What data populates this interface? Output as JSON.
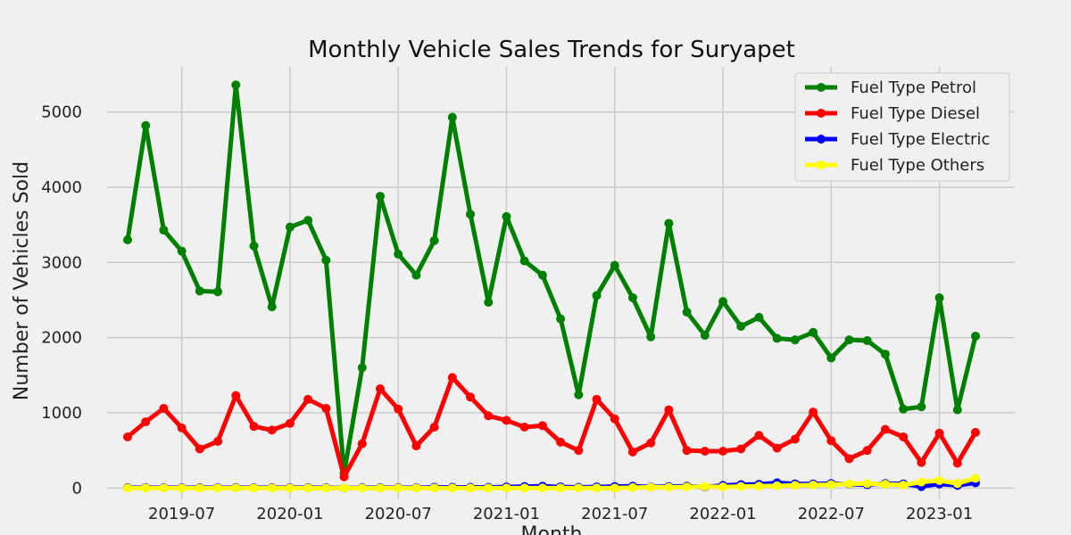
{
  "chart_data": {
    "type": "line",
    "title": "Monthly Vehicle Sales Trends for Suryapet",
    "xlabel": "Month",
    "ylabel": "Number of Vehicles Sold",
    "x": [
      "2019-04",
      "2019-05",
      "2019-06",
      "2019-07",
      "2019-08",
      "2019-09",
      "2019-10",
      "2019-11",
      "2019-12",
      "2020-01",
      "2020-02",
      "2020-03",
      "2020-04",
      "2020-05",
      "2020-06",
      "2020-07",
      "2020-08",
      "2020-09",
      "2020-10",
      "2020-11",
      "2020-12",
      "2021-01",
      "2021-02",
      "2021-03",
      "2021-04",
      "2021-05",
      "2021-06",
      "2021-07",
      "2021-08",
      "2021-09",
      "2021-10",
      "2021-11",
      "2021-12",
      "2022-01",
      "2022-02",
      "2022-03",
      "2022-04",
      "2022-05",
      "2022-06",
      "2022-07",
      "2022-08",
      "2022-09",
      "2022-10",
      "2022-11",
      "2022-12",
      "2023-01",
      "2023-02",
      "2023-03"
    ],
    "x_ticks": [
      "2019-07",
      "2020-01",
      "2020-07",
      "2021-01",
      "2021-07",
      "2022-01",
      "2022-07",
      "2023-01"
    ],
    "y_ticks": [
      0,
      1000,
      2000,
      3000,
      4000,
      5000
    ],
    "ylim": [
      -150,
      5600
    ],
    "grid": true,
    "legend": "top-right",
    "series": [
      {
        "name": "Fuel Type Petrol",
        "color": "#008000",
        "values": [
          3300,
          4820,
          3430,
          3150,
          2620,
          2610,
          5360,
          3220,
          2410,
          3470,
          3560,
          3030,
          200,
          1600,
          3880,
          3110,
          2830,
          3290,
          4930,
          3640,
          2470,
          3610,
          3020,
          2830,
          2250,
          1240,
          2560,
          2960,
          2530,
          2010,
          3520,
          2340,
          2030,
          2480,
          2150,
          2270,
          1990,
          1970,
          2070,
          1730,
          1970,
          1960,
          1780,
          1050,
          1080,
          2530,
          1040,
          2020
        ]
      },
      {
        "name": "Fuel Type Diesel",
        "color": "#ff0000",
        "values": [
          680,
          880,
          1060,
          800,
          520,
          620,
          1230,
          820,
          770,
          860,
          1180,
          1060,
          150,
          590,
          1320,
          1050,
          560,
          810,
          1470,
          1210,
          960,
          900,
          810,
          830,
          610,
          500,
          1180,
          920,
          480,
          600,
          1040,
          500,
          490,
          490,
          520,
          700,
          530,
          650,
          1010,
          630,
          390,
          500,
          780,
          680,
          340,
          730,
          330,
          740
        ]
      },
      {
        "name": "Fuel Type Electric",
        "color": "#0000ff",
        "values": [
          5,
          5,
          5,
          5,
          5,
          5,
          5,
          5,
          5,
          5,
          5,
          5,
          0,
          5,
          5,
          5,
          5,
          10,
          10,
          10,
          10,
          15,
          20,
          25,
          15,
          10,
          15,
          20,
          25,
          15,
          20,
          25,
          15,
          35,
          45,
          50,
          70,
          55,
          55,
          60,
          50,
          45,
          60,
          55,
          20,
          55,
          35,
          70
        ]
      },
      {
        "name": "Fuel Type Others",
        "color": "#ffff00",
        "values": [
          0,
          0,
          0,
          0,
          0,
          0,
          0,
          0,
          0,
          0,
          0,
          0,
          0,
          0,
          0,
          0,
          0,
          0,
          0,
          0,
          0,
          0,
          0,
          0,
          0,
          0,
          0,
          0,
          5,
          10,
          10,
          15,
          20,
          15,
          20,
          25,
          30,
          35,
          40,
          45,
          55,
          60,
          50,
          40,
          80,
          100,
          60,
          130
        ]
      }
    ]
  }
}
